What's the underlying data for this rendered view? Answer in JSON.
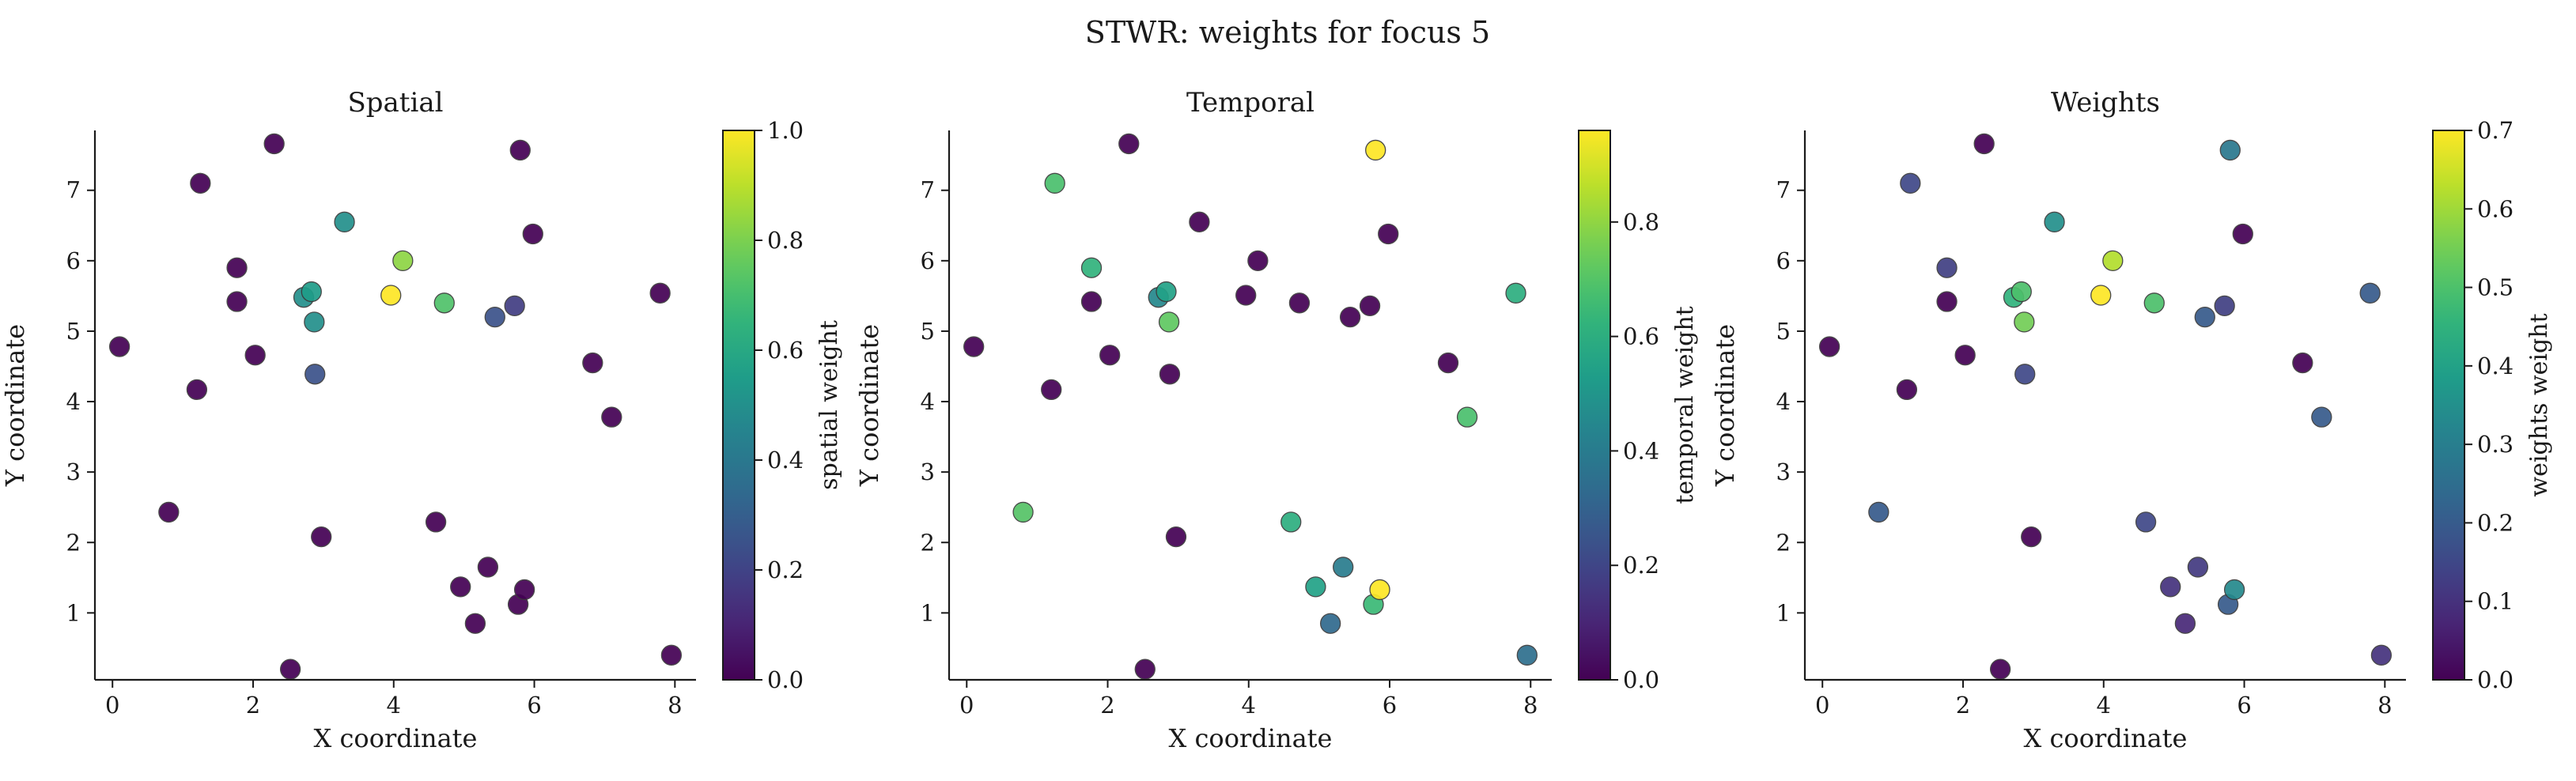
{
  "figure": {
    "title": "STWR: weights for focus 5"
  },
  "chart_data": [
    {
      "type": "scatter",
      "title": "Spatial",
      "xlabel": "X coordinate",
      "ylabel": "Y coordinate",
      "xlim": [
        -0.25,
        8.3
      ],
      "ylim": [
        0.05,
        7.85
      ],
      "xticks": [
        "0",
        "2",
        "4",
        "6",
        "8"
      ],
      "yticks": [
        "1",
        "2",
        "3",
        "4",
        "5",
        "6",
        "7"
      ],
      "colormap": "viridis",
      "colorbar": {
        "label": "spatial weight",
        "min": 0.0,
        "max": 1.0,
        "ticks": [
          "0.0",
          "0.2",
          "0.4",
          "0.6",
          "0.8",
          "1.0"
        ]
      },
      "points": [
        {
          "x": 0.1,
          "y": 4.78,
          "c": 0.0
        },
        {
          "x": 0.8,
          "y": 2.43,
          "c": 0.0
        },
        {
          "x": 1.2,
          "y": 4.17,
          "c": 0.0
        },
        {
          "x": 1.25,
          "y": 7.1,
          "c": 0.0
        },
        {
          "x": 1.77,
          "y": 5.9,
          "c": 0.0
        },
        {
          "x": 1.77,
          "y": 5.42,
          "c": 0.0
        },
        {
          "x": 2.03,
          "y": 4.66,
          "c": 0.0
        },
        {
          "x": 2.3,
          "y": 7.66,
          "c": 0.0
        },
        {
          "x": 2.53,
          "y": 0.2,
          "c": 0.0
        },
        {
          "x": 2.72,
          "y": 5.48,
          "c": 0.5
        },
        {
          "x": 2.83,
          "y": 5.56,
          "c": 0.55
        },
        {
          "x": 2.87,
          "y": 5.13,
          "c": 0.5
        },
        {
          "x": 2.88,
          "y": 4.39,
          "c": 0.25
        },
        {
          "x": 2.97,
          "y": 2.08,
          "c": 0.0
        },
        {
          "x": 3.3,
          "y": 6.55,
          "c": 0.5
        },
        {
          "x": 3.96,
          "y": 5.51,
          "c": 1.0
        },
        {
          "x": 4.13,
          "y": 6.0,
          "c": 0.83
        },
        {
          "x": 4.6,
          "y": 2.29,
          "c": 0.0
        },
        {
          "x": 4.72,
          "y": 5.4,
          "c": 0.72
        },
        {
          "x": 4.95,
          "y": 1.37,
          "c": 0.0
        },
        {
          "x": 5.16,
          "y": 0.85,
          "c": 0.0
        },
        {
          "x": 5.34,
          "y": 1.65,
          "c": 0.0
        },
        {
          "x": 5.44,
          "y": 5.2,
          "c": 0.25
        },
        {
          "x": 5.72,
          "y": 5.36,
          "c": 0.18
        },
        {
          "x": 5.77,
          "y": 1.12,
          "c": 0.0
        },
        {
          "x": 5.8,
          "y": 7.57,
          "c": 0.0
        },
        {
          "x": 5.86,
          "y": 1.33,
          "c": 0.0
        },
        {
          "x": 5.98,
          "y": 6.38,
          "c": 0.0
        },
        {
          "x": 6.83,
          "y": 4.55,
          "c": 0.0
        },
        {
          "x": 7.1,
          "y": 3.78,
          "c": 0.0
        },
        {
          "x": 7.79,
          "y": 5.54,
          "c": 0.0
        },
        {
          "x": 7.95,
          "y": 0.4,
          "c": 0.0
        }
      ]
    },
    {
      "type": "scatter",
      "title": "Temporal",
      "xlabel": "X coordinate",
      "ylabel": "Y coordinate",
      "xlim": [
        -0.25,
        8.3
      ],
      "ylim": [
        0.05,
        7.85
      ],
      "xticks": [
        "0",
        "2",
        "4",
        "6",
        "8"
      ],
      "yticks": [
        "1",
        "2",
        "3",
        "4",
        "5",
        "6",
        "7"
      ],
      "colormap": "viridis",
      "colorbar": {
        "label": "temporal weight",
        "min": 0.0,
        "max": 0.96,
        "ticks": [
          "0.0",
          "0.2",
          "0.4",
          "0.6",
          "0.8"
        ]
      },
      "points": [
        {
          "x": 0.1,
          "y": 4.78,
          "c": 0.0
        },
        {
          "x": 0.8,
          "y": 2.43,
          "c": 0.7
        },
        {
          "x": 1.2,
          "y": 4.17,
          "c": 0.0
        },
        {
          "x": 1.25,
          "y": 7.1,
          "c": 0.68
        },
        {
          "x": 1.77,
          "y": 5.9,
          "c": 0.62
        },
        {
          "x": 1.77,
          "y": 5.42,
          "c": 0.0
        },
        {
          "x": 2.03,
          "y": 4.66,
          "c": 0.0
        },
        {
          "x": 2.3,
          "y": 7.66,
          "c": 0.0
        },
        {
          "x": 2.53,
          "y": 0.2,
          "c": 0.0
        },
        {
          "x": 2.72,
          "y": 5.48,
          "c": 0.45
        },
        {
          "x": 2.83,
          "y": 5.56,
          "c": 0.55
        },
        {
          "x": 2.87,
          "y": 5.13,
          "c": 0.72
        },
        {
          "x": 2.88,
          "y": 4.39,
          "c": 0.0
        },
        {
          "x": 2.97,
          "y": 2.08,
          "c": 0.0
        },
        {
          "x": 3.3,
          "y": 6.55,
          "c": 0.0
        },
        {
          "x": 3.96,
          "y": 5.51,
          "c": 0.0
        },
        {
          "x": 4.13,
          "y": 6.0,
          "c": 0.0
        },
        {
          "x": 4.6,
          "y": 2.29,
          "c": 0.6
        },
        {
          "x": 4.72,
          "y": 5.4,
          "c": 0.0
        },
        {
          "x": 4.95,
          "y": 1.37,
          "c": 0.55
        },
        {
          "x": 5.16,
          "y": 0.85,
          "c": 0.33
        },
        {
          "x": 5.34,
          "y": 1.65,
          "c": 0.4
        },
        {
          "x": 5.44,
          "y": 5.2,
          "c": 0.0
        },
        {
          "x": 5.72,
          "y": 5.36,
          "c": 0.0
        },
        {
          "x": 5.77,
          "y": 1.12,
          "c": 0.65
        },
        {
          "x": 5.8,
          "y": 7.57,
          "c": 0.96
        },
        {
          "x": 5.86,
          "y": 1.33,
          "c": 0.96
        },
        {
          "x": 5.98,
          "y": 6.38,
          "c": 0.0
        },
        {
          "x": 6.83,
          "y": 4.55,
          "c": 0.0
        },
        {
          "x": 7.1,
          "y": 3.78,
          "c": 0.68
        },
        {
          "x": 7.79,
          "y": 5.54,
          "c": 0.6
        },
        {
          "x": 7.95,
          "y": 0.4,
          "c": 0.35
        }
      ]
    },
    {
      "type": "scatter",
      "title": "Weights",
      "xlabel": "X coordinate",
      "ylabel": "Y coordinate",
      "xlim": [
        -0.25,
        8.3
      ],
      "ylim": [
        0.05,
        7.85
      ],
      "xticks": [
        "0",
        "2",
        "4",
        "6",
        "8"
      ],
      "yticks": [
        "1",
        "2",
        "3",
        "4",
        "5",
        "6",
        "7"
      ],
      "colormap": "viridis",
      "colorbar": {
        "label": "weights weight",
        "min": 0.0,
        "max": 0.7,
        "ticks": [
          "0.0",
          "0.1",
          "0.2",
          "0.3",
          "0.4",
          "0.5",
          "0.6",
          "0.7"
        ]
      },
      "points": [
        {
          "x": 0.1,
          "y": 4.78,
          "c": 0.0
        },
        {
          "x": 0.8,
          "y": 2.43,
          "c": 0.2
        },
        {
          "x": 1.2,
          "y": 4.17,
          "c": 0.0
        },
        {
          "x": 1.25,
          "y": 7.1,
          "c": 0.15
        },
        {
          "x": 1.77,
          "y": 5.9,
          "c": 0.13
        },
        {
          "x": 1.77,
          "y": 5.42,
          "c": 0.0
        },
        {
          "x": 2.03,
          "y": 4.66,
          "c": 0.0
        },
        {
          "x": 2.3,
          "y": 7.66,
          "c": 0.0
        },
        {
          "x": 2.53,
          "y": 0.2,
          "c": 0.0
        },
        {
          "x": 2.72,
          "y": 5.48,
          "c": 0.45
        },
        {
          "x": 2.83,
          "y": 5.56,
          "c": 0.5
        },
        {
          "x": 2.87,
          "y": 5.13,
          "c": 0.55
        },
        {
          "x": 2.88,
          "y": 4.39,
          "c": 0.15
        },
        {
          "x": 2.97,
          "y": 2.08,
          "c": 0.0
        },
        {
          "x": 3.3,
          "y": 6.55,
          "c": 0.35
        },
        {
          "x": 3.96,
          "y": 5.51,
          "c": 0.7
        },
        {
          "x": 4.13,
          "y": 6.0,
          "c": 0.62
        },
        {
          "x": 4.6,
          "y": 2.29,
          "c": 0.15
        },
        {
          "x": 4.72,
          "y": 5.4,
          "c": 0.5
        },
        {
          "x": 4.95,
          "y": 1.37,
          "c": 0.1
        },
        {
          "x": 5.16,
          "y": 0.85,
          "c": 0.08
        },
        {
          "x": 5.34,
          "y": 1.65,
          "c": 0.12
        },
        {
          "x": 5.44,
          "y": 5.2,
          "c": 0.2
        },
        {
          "x": 5.72,
          "y": 5.36,
          "c": 0.13
        },
        {
          "x": 5.77,
          "y": 1.12,
          "c": 0.2
        },
        {
          "x": 5.8,
          "y": 7.57,
          "c": 0.28
        },
        {
          "x": 5.86,
          "y": 1.33,
          "c": 0.33
        },
        {
          "x": 5.98,
          "y": 6.38,
          "c": 0.0
        },
        {
          "x": 6.83,
          "y": 4.55,
          "c": 0.0
        },
        {
          "x": 7.1,
          "y": 3.78,
          "c": 0.2
        },
        {
          "x": 7.79,
          "y": 5.54,
          "c": 0.2
        },
        {
          "x": 7.95,
          "y": 0.4,
          "c": 0.1
        }
      ]
    }
  ]
}
